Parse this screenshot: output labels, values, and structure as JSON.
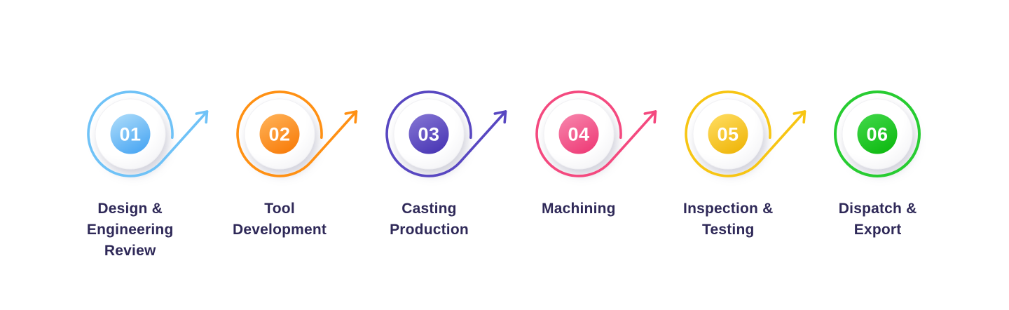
{
  "page": {
    "background": "#ffffff"
  },
  "diagram": {
    "type": "process-flow",
    "text_color": "#2F2958",
    "steps": [
      {
        "number": "01",
        "label_lines": [
          "Design &",
          "Engineering",
          "Review"
        ],
        "ring_color": "#6FC2F7",
        "badge_top": "#ABDBFA",
        "badge_bottom": "#4BA7F3",
        "has_arrow": true
      },
      {
        "number": "02",
        "label_lines": [
          "Tool",
          "Development"
        ],
        "ring_color": "#FF9013",
        "badge_top": "#FFB156",
        "badge_bottom": "#F87D0B",
        "has_arrow": true
      },
      {
        "number": "03",
        "label_lines": [
          "Casting",
          "Production"
        ],
        "ring_color": "#5847C1",
        "badge_top": "#8374D3",
        "badge_bottom": "#4A37B5",
        "has_arrow": true
      },
      {
        "number": "04",
        "label_lines": [
          "Machining"
        ],
        "ring_color": "#F4497F",
        "badge_top": "#F783AB",
        "badge_bottom": "#EE3D78",
        "has_arrow": true
      },
      {
        "number": "05",
        "label_lines": [
          "Inspection &",
          "Testing"
        ],
        "ring_color": "#F7C513",
        "badge_top": "#FFDC5F",
        "badge_bottom": "#EFB60B",
        "has_arrow": true
      },
      {
        "number": "06",
        "label_lines": [
          "Dispatch &",
          "Export"
        ],
        "ring_color": "#27CC31",
        "badge_top": "#3FD748",
        "badge_bottom": "#0FBA12",
        "has_arrow": false
      }
    ]
  }
}
